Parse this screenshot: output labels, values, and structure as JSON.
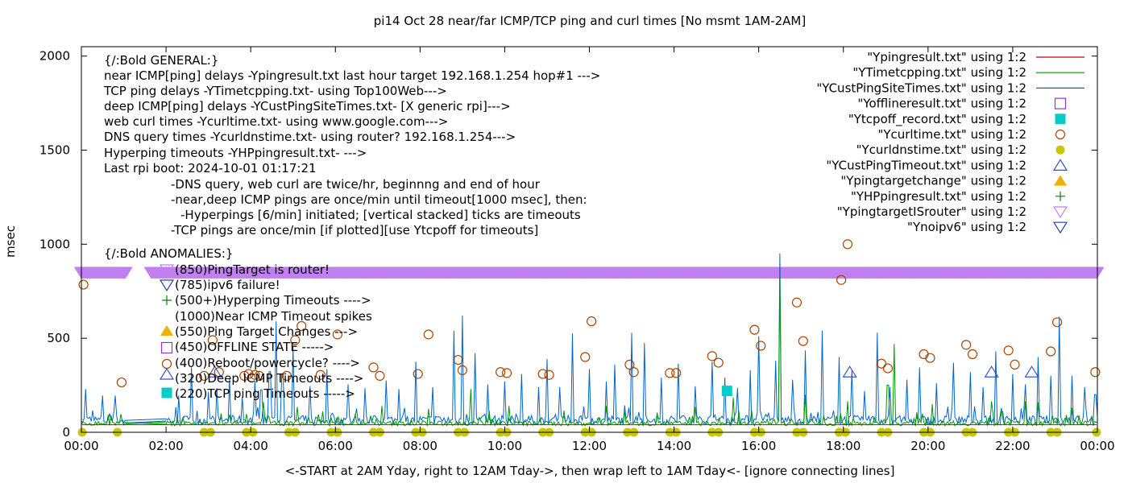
{
  "chart_data": {
    "type": "scatter",
    "title": "pi14 Oct 28  near/far ICMP/TCP ping and curl times [No msmt 1AM-2AM]",
    "xlabel": "<-START at 2AM Yday, right to 12AM Tday->, then wrap left to 1AM Tday<- [ignore connecting lines]",
    "ylabel": "msec",
    "xlim": [
      0,
      24
    ],
    "ylim": [
      0,
      2050
    ],
    "grid": false,
    "legend_position": "top-right",
    "x_tick_labels": [
      "00:00",
      "02:00",
      "04:00",
      "06:00",
      "08:00",
      "10:00",
      "12:00",
      "14:00",
      "16:00",
      "18:00",
      "20:00",
      "22:00",
      "00:00"
    ],
    "x_tick_values": [
      0,
      2,
      4,
      6,
      8,
      10,
      12,
      14,
      16,
      18,
      20,
      22,
      24
    ],
    "y_tick_values": [
      0,
      500,
      1000,
      1500,
      2000
    ],
    "y_tick_labels": [
      "0",
      "500",
      "1000",
      "1500",
      "2000"
    ],
    "legend": [
      {
        "label": "\"Ypingresult.txt\" using 1:2",
        "marker": "line",
        "color": "#cc0000"
      },
      {
        "label": "\"YTimetcpping.txt\" using 1:2",
        "marker": "line",
        "color": "#009900"
      },
      {
        "label": "\"YCustPingSiteTimes.txt\" using 1:2",
        "marker": "line",
        "color": "#0066cc"
      },
      {
        "label": "\"Yofflineresult.txt\" using 1:2",
        "marker": "open-square",
        "color": "#9933cc"
      },
      {
        "label": "\"Ytcpoff_record.txt\" using 1:2",
        "marker": "filled-square",
        "color": "#00cccc"
      },
      {
        "label": "\"Ycurltime.txt\" using 1:2",
        "marker": "open-circle",
        "color": "#aa4400"
      },
      {
        "label": "\"Ycurldnstime.txt\" using 1:2",
        "marker": "filled-circle",
        "color": "#c8c800"
      },
      {
        "label": "\"YCustPingTimeout.txt\" using 1:2",
        "marker": "open-triangle-up",
        "color": "#3355cc"
      },
      {
        "label": "\"Ypingtargetchange\" using 1:2",
        "marker": "filled-triangle-up",
        "color": "#f0b000"
      },
      {
        "label": "\"YHPpingresult.txt\" using 1:2",
        "marker": "plus",
        "color": "#008800"
      },
      {
        "label": "\"YpingtargetISrouter\" using 1:2",
        "marker": "open-triangle-down",
        "color": "#c080f0"
      },
      {
        "label": "\"Ynoipv6\" using 1:2",
        "marker": "open-triangle-down",
        "color": "#2244aa"
      }
    ],
    "annotations": [
      "{/:Bold GENERAL:}",
      "near ICMP[ping] delays -Ypingresult.txt last hour target 192.168.1.254 hop#1 --->",
      "TCP ping delays -YTimetcpping.txt- using Top100Web--->",
      "deep ICMP[ping] delays -YCustPingSiteTimes.txt- [X generic rpi]--->",
      "web curl times -Ycurltime.txt- using www.google.com--->",
      "DNS query times -Ycurldnstime.txt- using router? 192.168.1.254--->",
      "Hyperping timeouts -YHPpingresult.txt- --->",
      "Last rpi boot: 2024-10-01 01:17:21",
      "-DNS query, web curl are twice/hr, beginnng and end of hour",
      "-near,deep ICMP pings are once/min until timeout[1000 msec], then:",
      "-Hyperpings [6/min] initiated; [vertical stacked] ticks are timeouts",
      "-TCP pings are once/min [if plotted][use Ytcpoff for timeouts]",
      "{/:Bold ANOMALIES:}",
      "(850)PingTarget is router!",
      "(785)ipv6 failure!",
      "(500+)Hyperping Timeouts ---->",
      "(1000)Near ICMP Timeout spikes",
      "(550)Ping Target Changes --->",
      "(450)OFFLINE STATE ----->",
      "(400)Reboot/powercycle? ---->",
      "(320)Deep ICMP Timeouts ---->",
      "(220)TCP ping Timeouts ----->"
    ],
    "series": [
      {
        "name": "\"Ypingresult.txt\" using 1:2",
        "color": "#cc0000",
        "style": "line",
        "points": [
          [
            0.02,
            40
          ],
          [
            2,
            40
          ],
          [
            6,
            40
          ],
          [
            10,
            40
          ],
          [
            14,
            40
          ],
          [
            18,
            40
          ],
          [
            22,
            40
          ],
          [
            23.98,
            40
          ]
        ]
      },
      {
        "name": "\"YTimetcpping.txt\" using 1:2",
        "color": "#009900",
        "style": "line",
        "baseline": [
          35,
          60
        ],
        "spikes": [
          [
            1.5,
            115
          ],
          [
            2.4,
            80
          ],
          [
            3.3,
            100
          ],
          [
            4.3,
            160
          ],
          [
            5.1,
            135
          ],
          [
            5.6,
            95
          ],
          [
            7.1,
            140
          ],
          [
            8.2,
            125
          ],
          [
            9.2,
            230
          ],
          [
            10.1,
            140
          ],
          [
            11.4,
            115
          ],
          [
            12.4,
            140
          ],
          [
            13.6,
            105
          ],
          [
            14.5,
            135
          ],
          [
            15.4,
            185
          ],
          [
            16.5,
            830
          ],
          [
            17.1,
            200
          ],
          [
            18.1,
            165
          ],
          [
            19.05,
            455
          ],
          [
            19.2,
            470
          ],
          [
            20.1,
            150
          ],
          [
            21.5,
            165
          ],
          [
            22.3,
            165
          ],
          [
            22.6,
            160
          ],
          [
            23.4,
            130
          ]
        ]
      },
      {
        "name": "\"YCustPingSiteTimes.txt\" using 1:2",
        "color": "#0066cc",
        "style": "line",
        "baseline": [
          40,
          90
        ],
        "spikes": [
          [
            0.1,
            230
          ],
          [
            0.5,
            195
          ],
          [
            0.8,
            195
          ],
          [
            1.1,
            140
          ],
          [
            2.3,
            195
          ],
          [
            2.6,
            345
          ],
          [
            3.0,
            215
          ],
          [
            3.2,
            235
          ],
          [
            3.5,
            285
          ],
          [
            3.8,
            190
          ],
          [
            4.1,
            275
          ],
          [
            4.25,
            410
          ],
          [
            4.45,
            585
          ],
          [
            4.6,
            590
          ],
          [
            4.75,
            555
          ],
          [
            5.0,
            455
          ],
          [
            5.4,
            245
          ],
          [
            5.8,
            335
          ],
          [
            6.3,
            255
          ],
          [
            6.7,
            235
          ],
          [
            7.2,
            275
          ],
          [
            7.5,
            230
          ],
          [
            7.9,
            375
          ],
          [
            8.3,
            240
          ],
          [
            8.8,
            540
          ],
          [
            9.0,
            620
          ],
          [
            9.3,
            420
          ],
          [
            9.6,
            255
          ],
          [
            10.0,
            270
          ],
          [
            10.4,
            310
          ],
          [
            10.8,
            240
          ],
          [
            11.0,
            390
          ],
          [
            11.3,
            240
          ],
          [
            11.6,
            525
          ],
          [
            12.0,
            335
          ],
          [
            12.4,
            270
          ],
          [
            12.6,
            360
          ],
          [
            13.0,
            530
          ],
          [
            13.3,
            475
          ],
          [
            13.7,
            290
          ],
          [
            14.1,
            365
          ],
          [
            14.5,
            245
          ],
          [
            14.9,
            375
          ],
          [
            15.2,
            290
          ],
          [
            15.5,
            235
          ],
          [
            15.8,
            330
          ],
          [
            16.0,
            510
          ],
          [
            16.4,
            380
          ],
          [
            16.5,
            950
          ],
          [
            16.8,
            280
          ],
          [
            17.1,
            435
          ],
          [
            17.5,
            540
          ],
          [
            17.9,
            400
          ],
          [
            18.2,
            330
          ],
          [
            18.5,
            220
          ],
          [
            18.8,
            530
          ],
          [
            19.1,
            240
          ],
          [
            19.5,
            280
          ],
          [
            19.8,
            345
          ],
          [
            20.2,
            260
          ],
          [
            20.6,
            370
          ],
          [
            21.0,
            320
          ],
          [
            21.3,
            240
          ],
          [
            21.6,
            430
          ],
          [
            22.0,
            310
          ],
          [
            22.3,
            255
          ],
          [
            22.6,
            400
          ],
          [
            22.9,
            300
          ],
          [
            23.1,
            615
          ],
          [
            23.4,
            300
          ],
          [
            23.7,
            240
          ],
          [
            23.95,
            365
          ]
        ]
      },
      {
        "name": "\"Ytcpoff_record.txt\" using 1:2",
        "color": "#00cccc",
        "style": "filled-square",
        "points": [
          [
            15.25,
            220
          ]
        ]
      },
      {
        "name": "\"Ycurltime.txt\" using 1:2",
        "color": "#aa4400",
        "style": "open-circle",
        "points": [
          [
            0.05,
            785
          ],
          [
            0.95,
            265
          ],
          [
            2.9,
            300
          ],
          [
            3.1,
            490
          ],
          [
            3.25,
            320
          ],
          [
            3.85,
            300
          ],
          [
            3.95,
            310
          ],
          [
            4.1,
            305
          ],
          [
            4.2,
            300
          ],
          [
            4.85,
            300
          ],
          [
            5.05,
            490
          ],
          [
            5.2,
            565
          ],
          [
            5.65,
            305
          ],
          [
            6.05,
            520
          ],
          [
            6.9,
            345
          ],
          [
            7.05,
            300
          ],
          [
            7.95,
            310
          ],
          [
            8.2,
            520
          ],
          [
            8.9,
            385
          ],
          [
            9.0,
            330
          ],
          [
            9.9,
            320
          ],
          [
            10.05,
            315
          ],
          [
            10.9,
            310
          ],
          [
            11.05,
            305
          ],
          [
            11.9,
            400
          ],
          [
            12.05,
            590
          ],
          [
            12.95,
            360
          ],
          [
            13.05,
            320
          ],
          [
            13.9,
            315
          ],
          [
            14.05,
            315
          ],
          [
            14.9,
            405
          ],
          [
            15.05,
            370
          ],
          [
            15.9,
            545
          ],
          [
            16.05,
            460
          ],
          [
            16.9,
            690
          ],
          [
            17.05,
            485
          ],
          [
            17.95,
            810
          ],
          [
            18.1,
            1000
          ],
          [
            18.9,
            365
          ],
          [
            19.05,
            340
          ],
          [
            19.9,
            415
          ],
          [
            20.05,
            395
          ],
          [
            20.9,
            465
          ],
          [
            21.05,
            415
          ],
          [
            21.9,
            435
          ],
          [
            22.05,
            360
          ],
          [
            22.9,
            430
          ],
          [
            23.05,
            585
          ],
          [
            23.95,
            320
          ]
        ]
      },
      {
        "name": "\"Ycurldnstime.txt\" using 1:2",
        "color": "#c8c800",
        "style": "filled-circle",
        "points": [
          [
            0.02,
            0
          ],
          [
            0.85,
            0
          ],
          [
            2.9,
            0
          ],
          [
            3.05,
            0
          ],
          [
            3.9,
            0
          ],
          [
            4.05,
            0
          ],
          [
            4.9,
            0
          ],
          [
            5.05,
            0
          ],
          [
            5.9,
            0
          ],
          [
            6.05,
            0
          ],
          [
            6.9,
            0
          ],
          [
            7.05,
            0
          ],
          [
            7.9,
            0
          ],
          [
            8.05,
            0
          ],
          [
            8.9,
            0
          ],
          [
            9.05,
            0
          ],
          [
            9.9,
            0
          ],
          [
            10.05,
            0
          ],
          [
            10.9,
            0
          ],
          [
            11.05,
            0
          ],
          [
            11.9,
            0
          ],
          [
            12.05,
            0
          ],
          [
            12.9,
            0
          ],
          [
            13.05,
            0
          ],
          [
            13.9,
            0
          ],
          [
            14.05,
            0
          ],
          [
            14.9,
            0
          ],
          [
            15.05,
            0
          ],
          [
            15.9,
            0
          ],
          [
            16.05,
            0
          ],
          [
            16.9,
            0
          ],
          [
            17.05,
            0
          ],
          [
            17.9,
            0
          ],
          [
            18.05,
            0
          ],
          [
            18.9,
            0
          ],
          [
            19.05,
            0
          ],
          [
            19.9,
            0
          ],
          [
            20.05,
            0
          ],
          [
            20.9,
            0
          ],
          [
            21.05,
            0
          ],
          [
            21.9,
            0
          ],
          [
            22.05,
            0
          ],
          [
            22.9,
            0
          ],
          [
            23.05,
            0
          ],
          [
            23.98,
            0
          ]
        ]
      },
      {
        "name": "\"YCustPingTimeout.txt\" using 1:2",
        "color": "#3355cc",
        "style": "open-triangle-up",
        "points": [
          [
            3.15,
            320
          ],
          [
            18.15,
            320
          ],
          [
            21.5,
            320
          ],
          [
            22.45,
            320
          ]
        ]
      },
      {
        "name": "\"YpingtargetISrouter\" using 1:2",
        "color": "#c080f0",
        "style": "open-triangle-down",
        "band_y": 850,
        "segments": [
          [
            0,
            1.05
          ],
          [
            1.65,
            24
          ]
        ]
      }
    ]
  }
}
